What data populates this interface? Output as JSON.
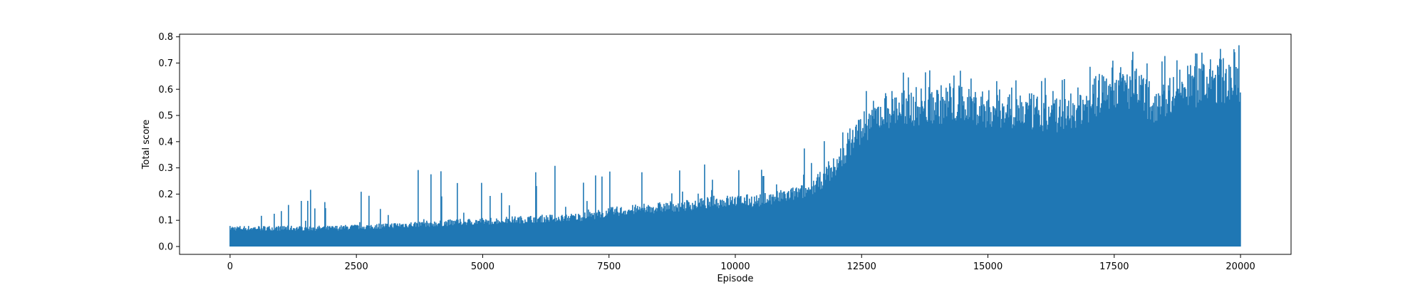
{
  "chart_data": {
    "type": "line",
    "title": "",
    "xlabel": "Episode",
    "ylabel": "Total score",
    "xlim": [
      -1000,
      21000
    ],
    "ylim": [
      -0.03,
      0.81
    ],
    "xticks": [
      0,
      2500,
      5000,
      7500,
      10000,
      12500,
      15000,
      17500,
      20000
    ],
    "xtick_labels": [
      "0",
      "2500",
      "5000",
      "7500",
      "10000",
      "12500",
      "15000",
      "17500",
      "20000"
    ],
    "yticks": [
      0.0,
      0.1,
      0.2,
      0.3,
      0.4,
      0.5,
      0.6,
      0.7,
      0.8
    ],
    "ytick_labels": [
      "0.0",
      "0.1",
      "0.2",
      "0.3",
      "0.4",
      "0.5",
      "0.6",
      "0.7",
      "0.8"
    ],
    "grid": false,
    "series": [
      {
        "color": "#1f77b4",
        "envelope": {
          "x": [
            0,
            1000,
            2000,
            3000,
            4000,
            5000,
            6000,
            7000,
            7500,
            8000,
            9000,
            10000,
            10500,
            11000,
            11500,
            12000,
            12250,
            12500,
            13000,
            13500,
            14000,
            14500,
            15000,
            15500,
            16000,
            16500,
            17000,
            17250,
            17500,
            18000,
            18250,
            18500,
            19000,
            19500,
            20000
          ],
          "min": [
            0.0,
            0.0,
            0.0,
            0.0,
            0.0,
            0.0,
            0.0,
            0.0,
            0.0,
            0.0,
            0.0,
            0.0,
            0.0,
            0.0,
            0.0,
            0.0,
            0.0,
            0.0,
            0.0,
            0.0,
            0.0,
            0.0,
            0.0,
            0.0,
            0.0,
            0.0,
            0.0,
            0.0,
            0.0,
            0.0,
            0.0,
            0.0,
            0.0,
            0.0,
            0.0
          ],
          "typical_max": [
            0.08,
            0.08,
            0.08,
            0.09,
            0.1,
            0.11,
            0.12,
            0.13,
            0.15,
            0.16,
            0.18,
            0.2,
            0.2,
            0.22,
            0.25,
            0.35,
            0.45,
            0.52,
            0.6,
            0.61,
            0.62,
            0.62,
            0.6,
            0.6,
            0.58,
            0.58,
            0.63,
            0.67,
            0.7,
            0.68,
            0.62,
            0.66,
            0.7,
            0.72,
            0.73
          ],
          "peaks": [
            0.12,
            0.15,
            0.28,
            0.17,
            0.34,
            0.25,
            0.32,
            0.31,
            0.31,
            0.3,
            0.34,
            0.31,
            0.3,
            0.37,
            0.4,
            0.45,
            0.55,
            0.58,
            0.66,
            0.67,
            0.68,
            0.67,
            0.67,
            0.66,
            0.65,
            0.68,
            0.72,
            0.75,
            0.77,
            0.75,
            0.69,
            0.73,
            0.74,
            0.76,
            0.77
          ]
        }
      }
    ]
  }
}
